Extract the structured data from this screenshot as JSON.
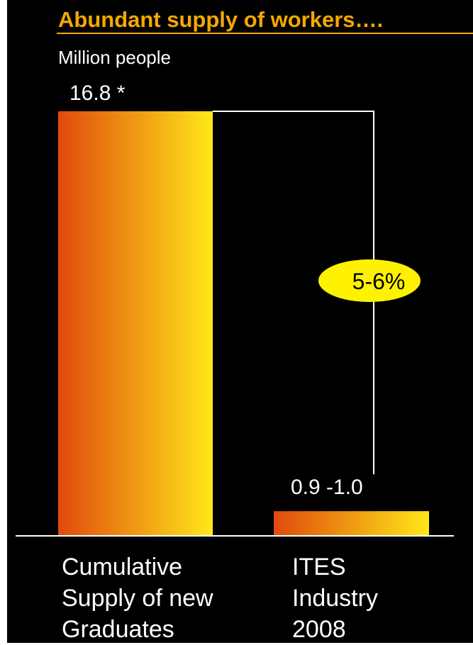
{
  "chart_data": {
    "type": "bar",
    "title": "Abundant supply of workers….",
    "ylabel": "Million people",
    "categories": [
      "Cumulative\nSupply of new\nGraduates",
      "ITES\nIndustry\n2008"
    ],
    "values": [
      16.8,
      0.95
    ],
    "value_labels": [
      "16.8 *",
      "0.9 -1.0"
    ],
    "ylim": [
      0,
      16.8
    ],
    "annotation": "5-6%",
    "grid": false,
    "legend": "none"
  },
  "colors": {
    "background": "#000000",
    "title": "#f5a800",
    "text": "#ffffff",
    "bar_gradient_start": "#e04a0c",
    "bar_gradient_end": "#ffe81a",
    "annotation_fill": "#fff200",
    "connector": "#ffffff"
  }
}
